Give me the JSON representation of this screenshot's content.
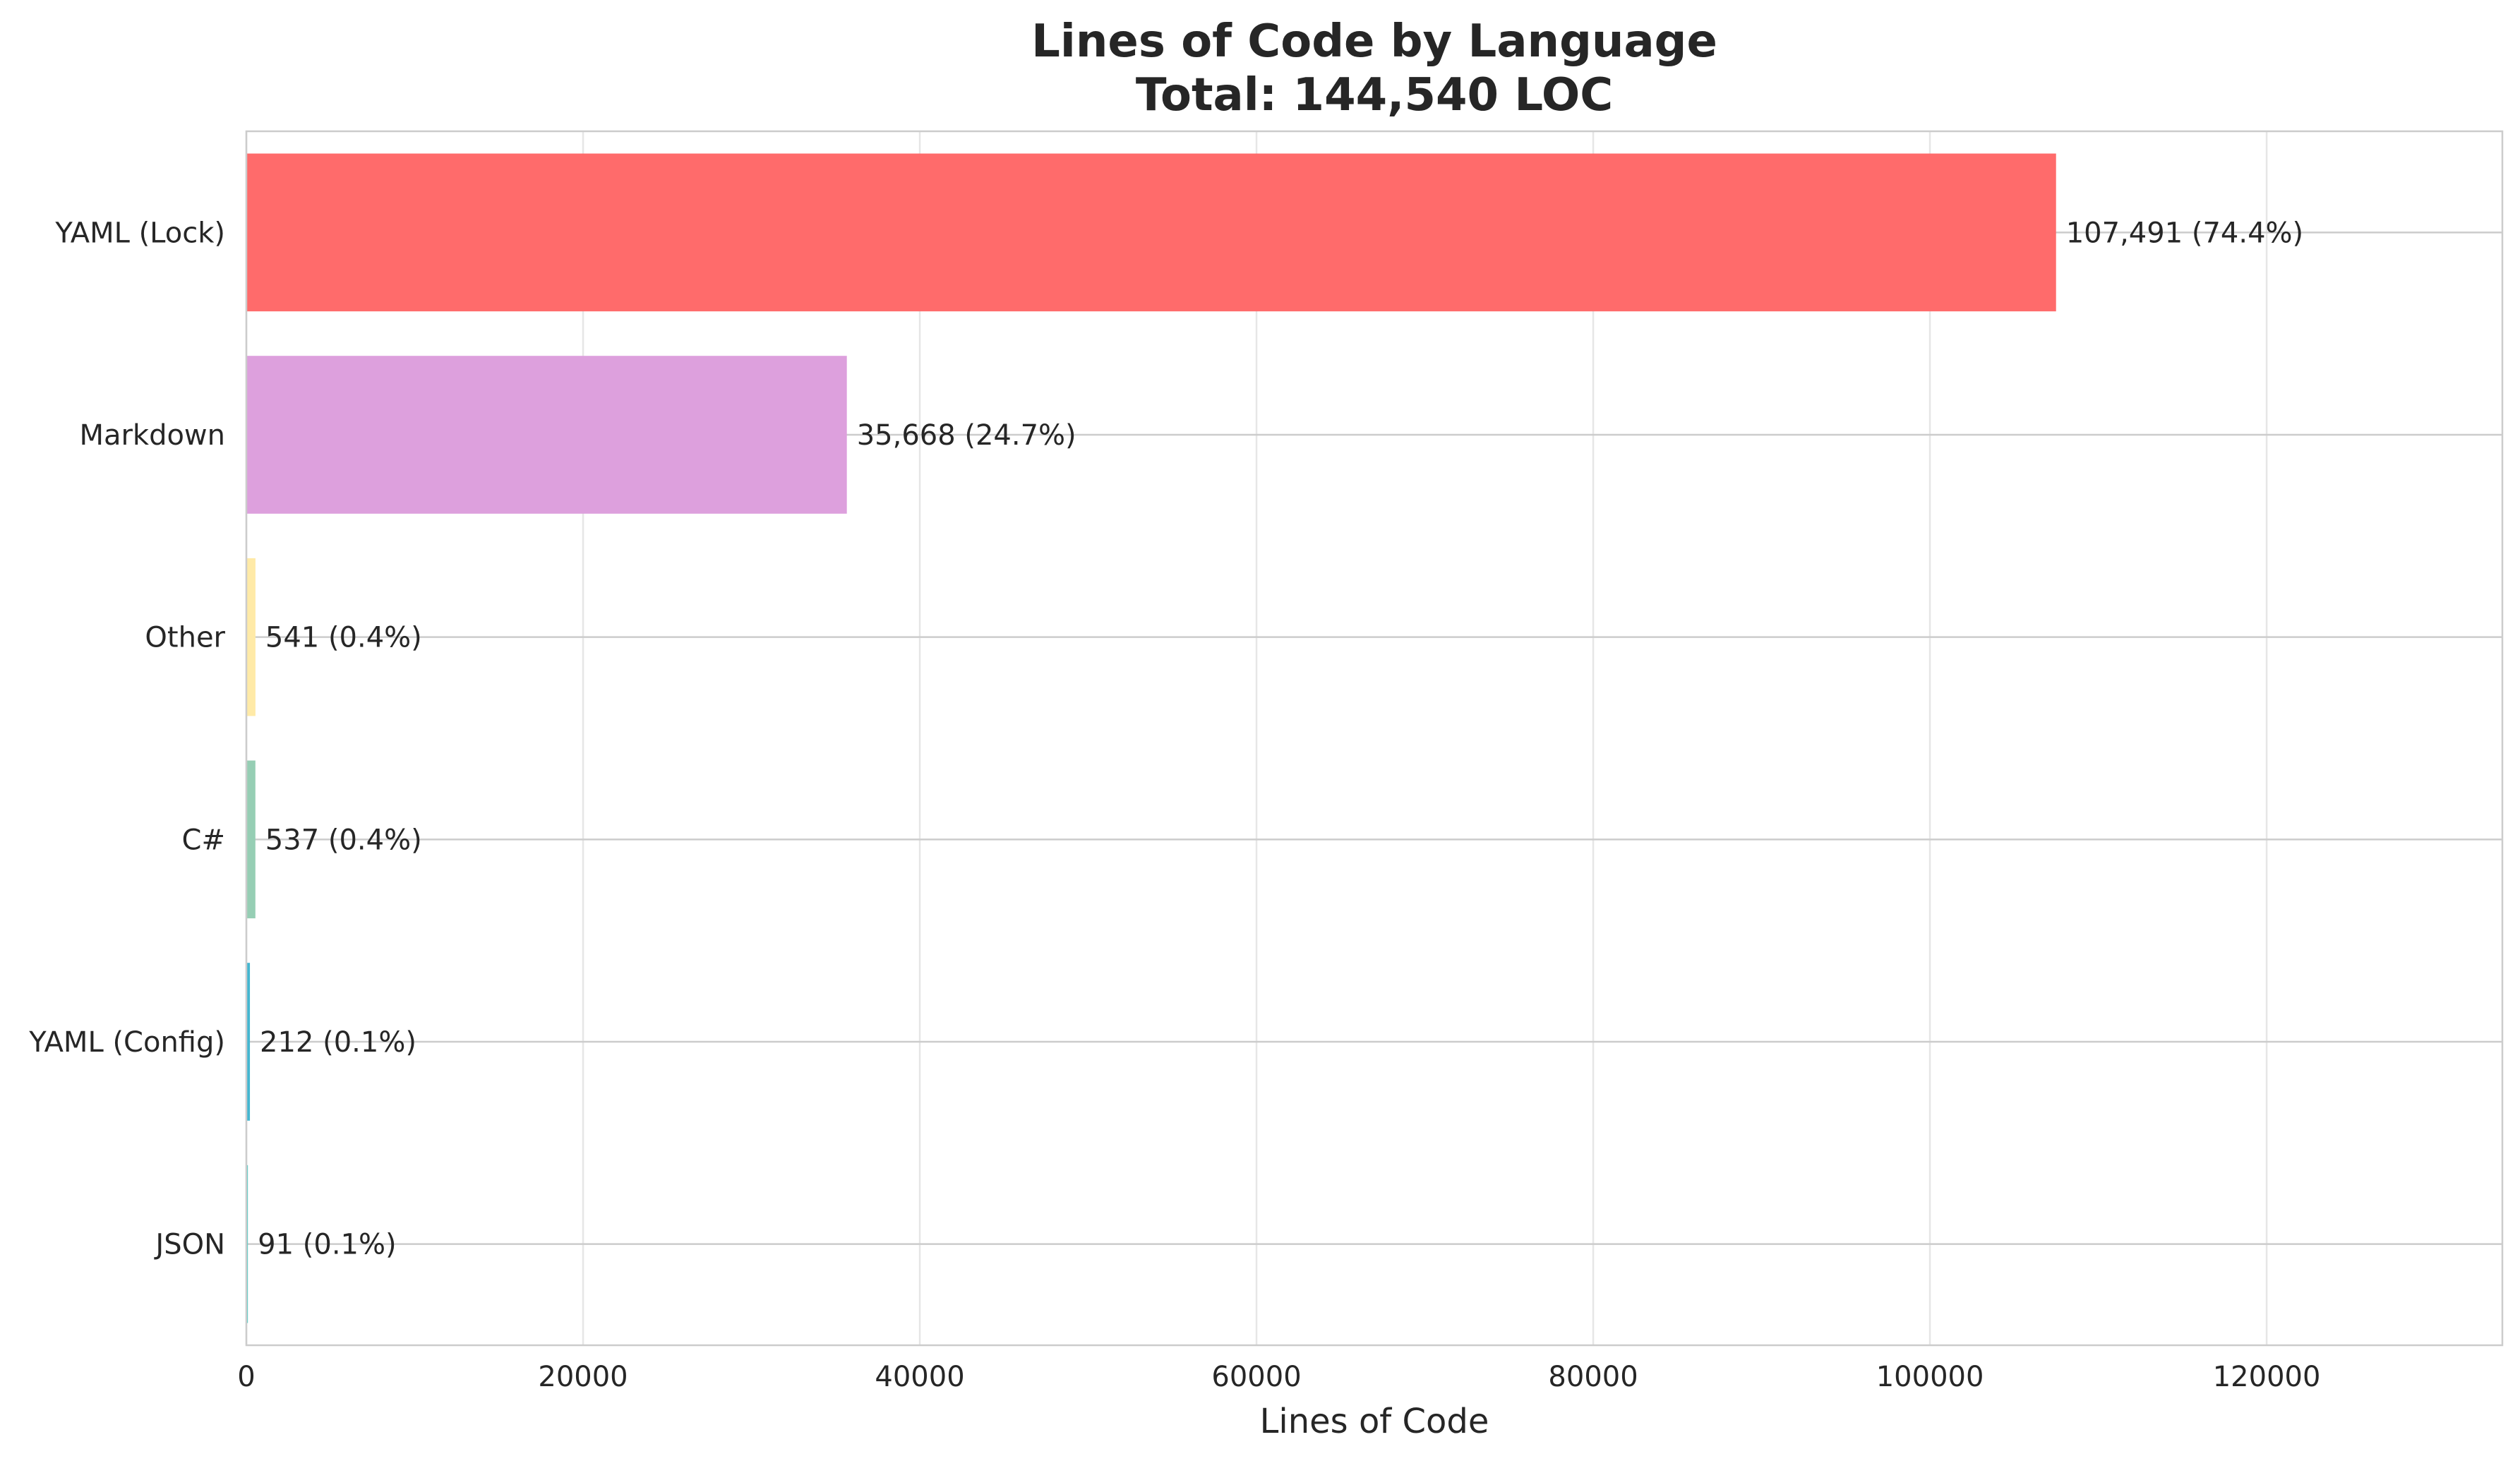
{
  "chart_data": {
    "type": "bar",
    "orientation": "horizontal",
    "title": "Lines of Code by Language",
    "subtitle": "Total: 144,540 LOC",
    "xlabel": "Lines of Code",
    "ylabel": "",
    "xlim": [
      0,
      134000
    ],
    "x_ticks": [
      0,
      20000,
      40000,
      60000,
      80000,
      100000,
      120000
    ],
    "grid": true,
    "categories": [
      "YAML (Lock)",
      "Markdown",
      "Other",
      "C#",
      "YAML (Config)",
      "JSON"
    ],
    "values": [
      107491,
      35668,
      541,
      537,
      212,
      91
    ],
    "value_labels": [
      "107,491 (74.4%)",
      "35,668 (24.7%)",
      "541 (0.4%)",
      "537 (0.4%)",
      "212 (0.1%)",
      "91 (0.1%)"
    ],
    "colors": [
      "#ff6b6b",
      "#dda0dd",
      "#ffeaa7",
      "#96ceb4",
      "#45b7d1",
      "#4ecdc4"
    ]
  }
}
